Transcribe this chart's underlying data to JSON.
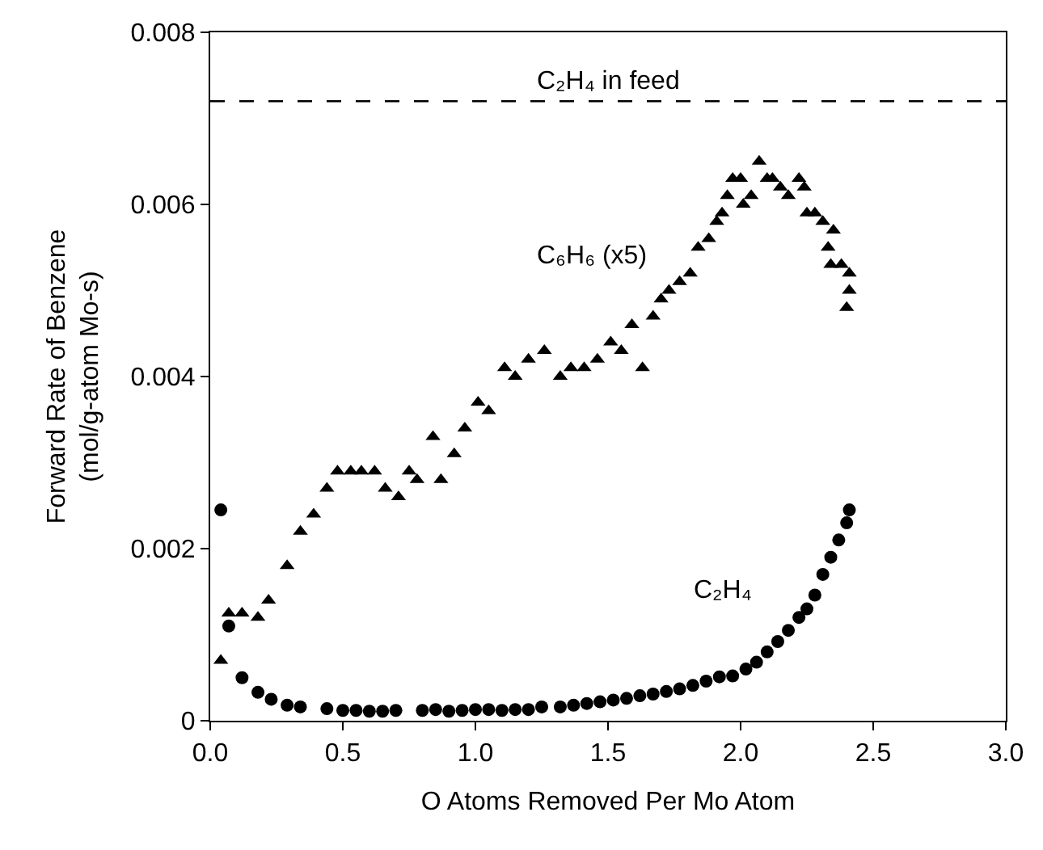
{
  "chart_data": {
    "type": "scatter",
    "xlabel": "O Atoms Removed Per Mo Atom",
    "ylabel": "Forward Rate of Benzene\n(mol/g-atom Mo-s)",
    "xlim": [
      0,
      3.0
    ],
    "xticks": [
      {
        "value": 0,
        "label": "0.0"
      },
      0.5,
      {
        "value": 1,
        "label": "1.0"
      },
      1.5,
      {
        "value": 2,
        "label": "2.0"
      },
      2.5,
      {
        "value": 3,
        "label": "3.0"
      }
    ],
    "ylim": [
      0,
      0.008
    ],
    "yticks": [
      0,
      0.002,
      0.004,
      0.006,
      0.008
    ],
    "series": [
      {
        "color": "#000000",
        "marker": "triangle",
        "x": [
          0.04,
          0.07,
          0.12,
          0.18,
          0.22,
          0.29,
          0.34,
          0.39,
          0.44,
          0.48,
          0.53,
          0.57,
          0.62,
          0.66,
          0.71,
          0.75,
          0.78,
          0.84,
          0.87,
          0.92,
          0.96,
          1.01,
          1.05,
          1.11,
          1.15,
          1.2,
          1.26,
          1.32,
          1.36,
          1.41,
          1.46,
          1.51,
          1.55,
          1.59,
          1.63,
          1.67,
          1.7,
          1.73,
          1.77,
          1.81,
          1.84,
          1.88,
          1.91,
          1.93,
          1.95,
          1.97,
          2.0,
          2.01,
          2.04,
          2.07,
          2.1,
          2.12,
          2.15,
          2.18,
          2.22,
          2.24,
          2.25,
          2.28,
          2.31,
          2.35,
          2.33,
          2.34,
          2.38,
          2.41,
          2.41,
          2.4
        ],
        "values": [
          0.0007,
          0.00125,
          0.00125,
          0.0012,
          0.0014,
          0.0018,
          0.0022,
          0.0024,
          0.0027,
          0.0029,
          0.0029,
          0.0029,
          0.0029,
          0.0027,
          0.0026,
          0.0029,
          0.0028,
          0.0033,
          0.0028,
          0.0031,
          0.0034,
          0.0037,
          0.0036,
          0.0041,
          0.004,
          0.0042,
          0.0043,
          0.004,
          0.0041,
          0.0041,
          0.0042,
          0.0044,
          0.0043,
          0.0046,
          0.0041,
          0.0047,
          0.0049,
          0.005,
          0.0051,
          0.0052,
          0.0055,
          0.0056,
          0.0058,
          0.0059,
          0.0061,
          0.0063,
          0.0063,
          0.006,
          0.0061,
          0.0065,
          0.0063,
          0.0063,
          0.0062,
          0.0061,
          0.0063,
          0.0062,
          0.0059,
          0.0059,
          0.0058,
          0.0057,
          0.0055,
          0.0053,
          0.0053,
          0.0052,
          0.005,
          0.0048
        ]
      },
      {
        "color": "#000000",
        "marker": "circle",
        "x": [
          0.04,
          0.07,
          0.12,
          0.18,
          0.23,
          0.29,
          0.34,
          0.44,
          0.5,
          0.55,
          0.6,
          0.65,
          0.7,
          0.8,
          0.85,
          0.9,
          0.95,
          1.0,
          1.05,
          1.1,
          1.15,
          1.2,
          1.25,
          1.32,
          1.37,
          1.42,
          1.47,
          1.52,
          1.57,
          1.62,
          1.67,
          1.72,
          1.77,
          1.82,
          1.87,
          1.92,
          1.97,
          2.02,
          2.06,
          2.1,
          2.14,
          2.18,
          2.22,
          2.25,
          2.28,
          2.31,
          2.34,
          2.37,
          2.4,
          2.41
        ],
        "values": [
          0.00245,
          0.0011,
          0.0005,
          0.00033,
          0.00025,
          0.00018,
          0.00016,
          0.00014,
          0.00012,
          0.00012,
          0.00011,
          0.00011,
          0.00012,
          0.00012,
          0.00013,
          0.00011,
          0.00012,
          0.00013,
          0.00013,
          0.00012,
          0.00013,
          0.00013,
          0.00016,
          0.00016,
          0.00018,
          0.0002,
          0.00022,
          0.00024,
          0.00026,
          0.00029,
          0.00031,
          0.00034,
          0.00037,
          0.00041,
          0.00046,
          0.00051,
          0.00052,
          0.0006,
          0.00068,
          0.0008,
          0.00092,
          0.00105,
          0.0012,
          0.0013,
          0.00146,
          0.0017,
          0.0019,
          0.0021,
          0.0023,
          0.00245
        ]
      }
    ],
    "ref_lines": [
      {
        "axis": "y",
        "value": 0.0072,
        "label": "C₂H₄ in feed",
        "color": "#000000",
        "line_style": "dashed"
      }
    ],
    "annotations": [
      "C₆H₆ (x5)",
      "C₂H₄"
    ]
  }
}
